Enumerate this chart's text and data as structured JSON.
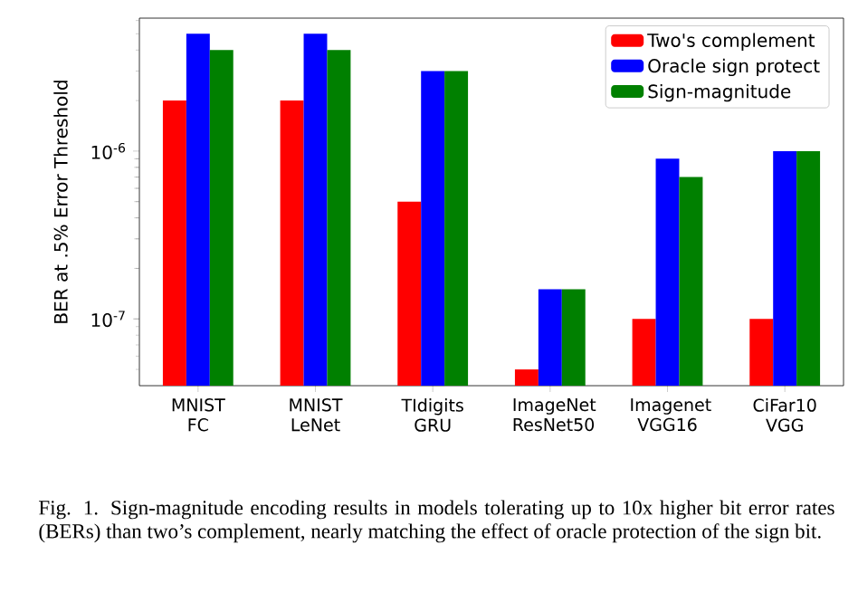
{
  "chart_data": {
    "type": "bar",
    "categories": [
      "MNIST FC",
      "MNIST LeNet",
      "TIdigits GRU",
      "ImageNet ResNet50",
      "Imagenet VGG16",
      "CiFar10 VGG"
    ],
    "series": [
      {
        "name": "Two's complement",
        "color": "#ff0000",
        "values": [
          2e-06,
          2e-06,
          5e-07,
          5e-08,
          1e-07,
          1e-07
        ]
      },
      {
        "name": "Oracle sign protect",
        "color": "#0000ff",
        "values": [
          5e-06,
          5e-06,
          3e-06,
          1.5e-07,
          9e-07,
          1e-06
        ]
      },
      {
        "name": "Sign-magnitude",
        "color": "#008000",
        "values": [
          4e-06,
          4e-06,
          3e-06,
          1.5e-07,
          7e-07,
          1e-06
        ]
      }
    ],
    "ylabel": "BER at .5% Error Threshold",
    "log": "y",
    "ylim": [
      4e-08,
      6.2e-06
    ],
    "yticks": [
      {
        "value": 5e-08,
        "label": null
      },
      {
        "value": 6e-08,
        "label": null
      },
      {
        "value": 7e-08,
        "label": null
      },
      {
        "value": 8e-08,
        "label": null
      },
      {
        "value": 9e-08,
        "label": null
      },
      {
        "value": 1e-07,
        "label": "10$^{-7}$"
      },
      {
        "value": 2e-07,
        "label": null
      },
      {
        "value": 3e-07,
        "label": null
      },
      {
        "value": 4e-07,
        "label": null
      },
      {
        "value": 5e-07,
        "label": null
      },
      {
        "value": 6e-07,
        "label": null
      },
      {
        "value": 7e-07,
        "label": null
      },
      {
        "value": 8e-07,
        "label": null
      },
      {
        "value": 9e-07,
        "label": null
      },
      {
        "value": 1e-06,
        "label": "10$^{-6}$"
      },
      {
        "value": 2e-06,
        "label": null
      },
      {
        "value": 3e-06,
        "label": null
      },
      {
        "value": 4e-06,
        "label": null
      },
      {
        "value": 5e-06,
        "label": null
      },
      {
        "value": 6e-06,
        "label": null
      }
    ],
    "legend": "top right",
    "grid": false,
    "annotations": [
      "Fig. 1.  Sign-magnitude encoding results in models tolerating up to 10x higher bit error rates (BERs) than two’s complement, nearly matching the effect of oracle protection of the sign bit."
    ]
  }
}
